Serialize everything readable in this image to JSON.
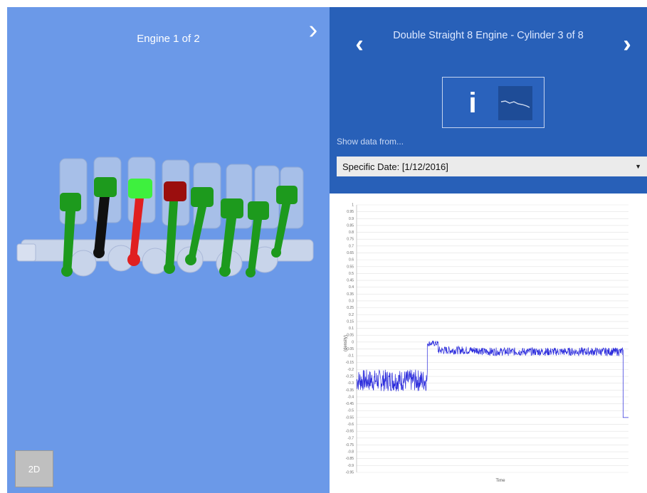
{
  "left_panel": {
    "engine_title": "Engine 1 of 2",
    "next_icon": "chevron-right-icon",
    "btn_2d_label": "2D",
    "background": "#6b99e8",
    "piston_colors": {
      "normal": "#1d9a1d",
      "bright": "#3ef03e",
      "warning": "#9b0e0e",
      "fault_rod": "#e02020",
      "dark_rod": "#101010"
    }
  },
  "right_panel": {
    "prev_icon": "chevron-left-icon",
    "next_icon": "chevron-right-icon",
    "cylinder_title": "Double Straight 8 Engine - Cylinder 3 of 8",
    "toggle": {
      "info_label": "i",
      "chart_icon": "line-chart-icon"
    },
    "show_data_label": "Show data from...",
    "date_selector_value": "Specific Date: [1/12/2016]",
    "header_background": "#2860b8"
  },
  "chart_data": {
    "type": "line",
    "xlabel": "Time",
    "ylabel": "(density)",
    "ylim": [
      -0.95,
      1
    ],
    "yticks": [
      "1",
      "0.95",
      "0.9",
      "0.85",
      "0.8",
      "0.75",
      "0.7",
      "0.65",
      "0.6",
      "0.55",
      "0.5",
      "0.45",
      "0.4",
      "0.35",
      "0.3",
      "0.25",
      "0.2",
      "0.15",
      "0.1",
      "0.05",
      "0",
      "-0.05",
      "-0.1",
      "-0.15",
      "-0.2",
      "-0.25",
      "-0.3",
      "-0.35",
      "-0.4",
      "-0.45",
      "-0.5",
      "-0.55",
      "-0.6",
      "-0.65",
      "-0.7",
      "-0.75",
      "-0.8",
      "-0.85",
      "-0.9",
      "-0.95"
    ],
    "grid": true,
    "series": [
      {
        "color": "#2b2bdc",
        "segments": [
          {
            "x_start": 0,
            "x_end": 0.26,
            "mean": -0.28,
            "noise": 0.08
          },
          {
            "x_start": 0.26,
            "x_end": 0.3,
            "mean": -0.01,
            "noise": 0.02
          },
          {
            "x_start": 0.3,
            "x_end": 0.46,
            "mean": -0.06,
            "noise": 0.03
          },
          {
            "x_start": 0.46,
            "x_end": 0.98,
            "mean": -0.07,
            "noise": 0.03
          }
        ],
        "end_drop": -0.55
      }
    ]
  }
}
